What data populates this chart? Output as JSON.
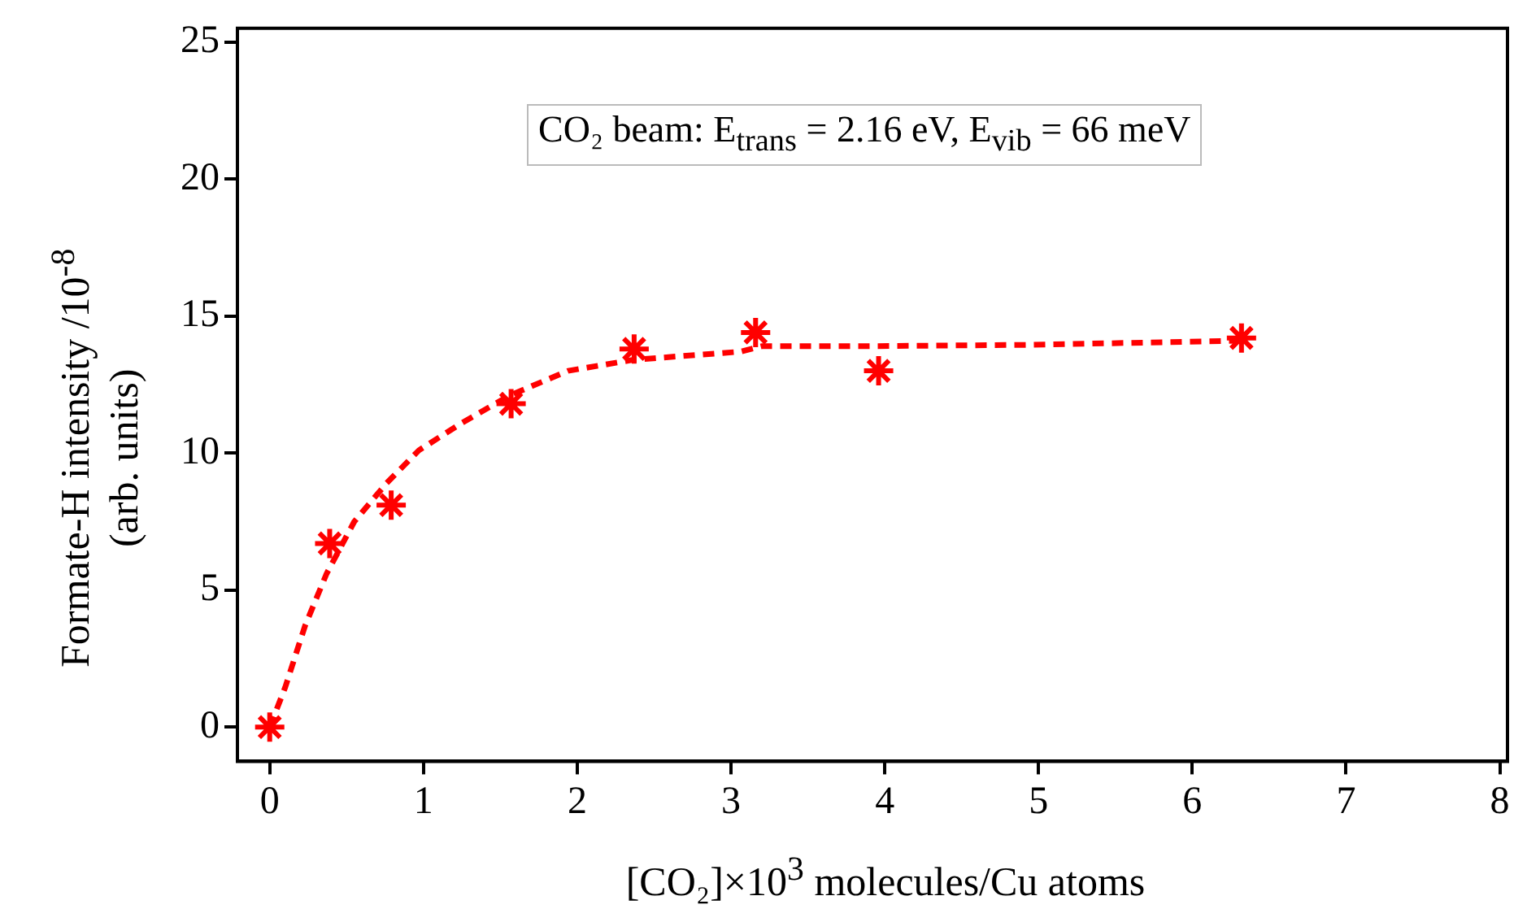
{
  "chart_data": {
    "type": "scatter",
    "xlabel": "[CO₂]×10$^{3}$ molecules/Cu atoms",
    "ylabel": "Formate-H  intensity /10$^{-8}$\n(arb. units)",
    "annotations": [
      "CO₂ beam: E$_{trans}$ = 2.16 eV, E$_{vib}$ = 66 meV"
    ],
    "xlim": [
      -0.21,
      8.05
    ],
    "xticks": [
      0,
      1,
      2,
      3,
      4,
      5,
      6,
      7,
      8
    ],
    "ylim": [
      -1.25,
      25.5
    ],
    "yticks": [
      0,
      5,
      10,
      15,
      20,
      25
    ],
    "grid": false,
    "legend": false,
    "series": [
      {
        "color": "#ff0000",
        "marker": "cross",
        "x": [
          0,
          0.39,
          0.79,
          1.57,
          2.37,
          3.16,
          3.96,
          6.32
        ],
        "values": [
          0,
          6.7,
          8.1,
          11.8,
          13.8,
          14.4,
          13.0,
          14.2
        ]
      },
      {
        "type": "line",
        "color": "#ff0000",
        "marker": "none",
        "line_style": "dashed",
        "x": [
          0,
          0.1,
          0.23,
          0.37,
          0.55,
          0.76,
          0.97,
          1.25,
          1.56,
          1.94,
          2.36,
          3.06,
          3.2,
          3.9,
          4.95,
          6.32
        ],
        "values": [
          0,
          1.44,
          3.7,
          5.6,
          7.5,
          8.9,
          10.1,
          11.1,
          12.1,
          13.0,
          13.4,
          13.7,
          13.9,
          13.9,
          13.95,
          14.1
        ]
      }
    ]
  }
}
